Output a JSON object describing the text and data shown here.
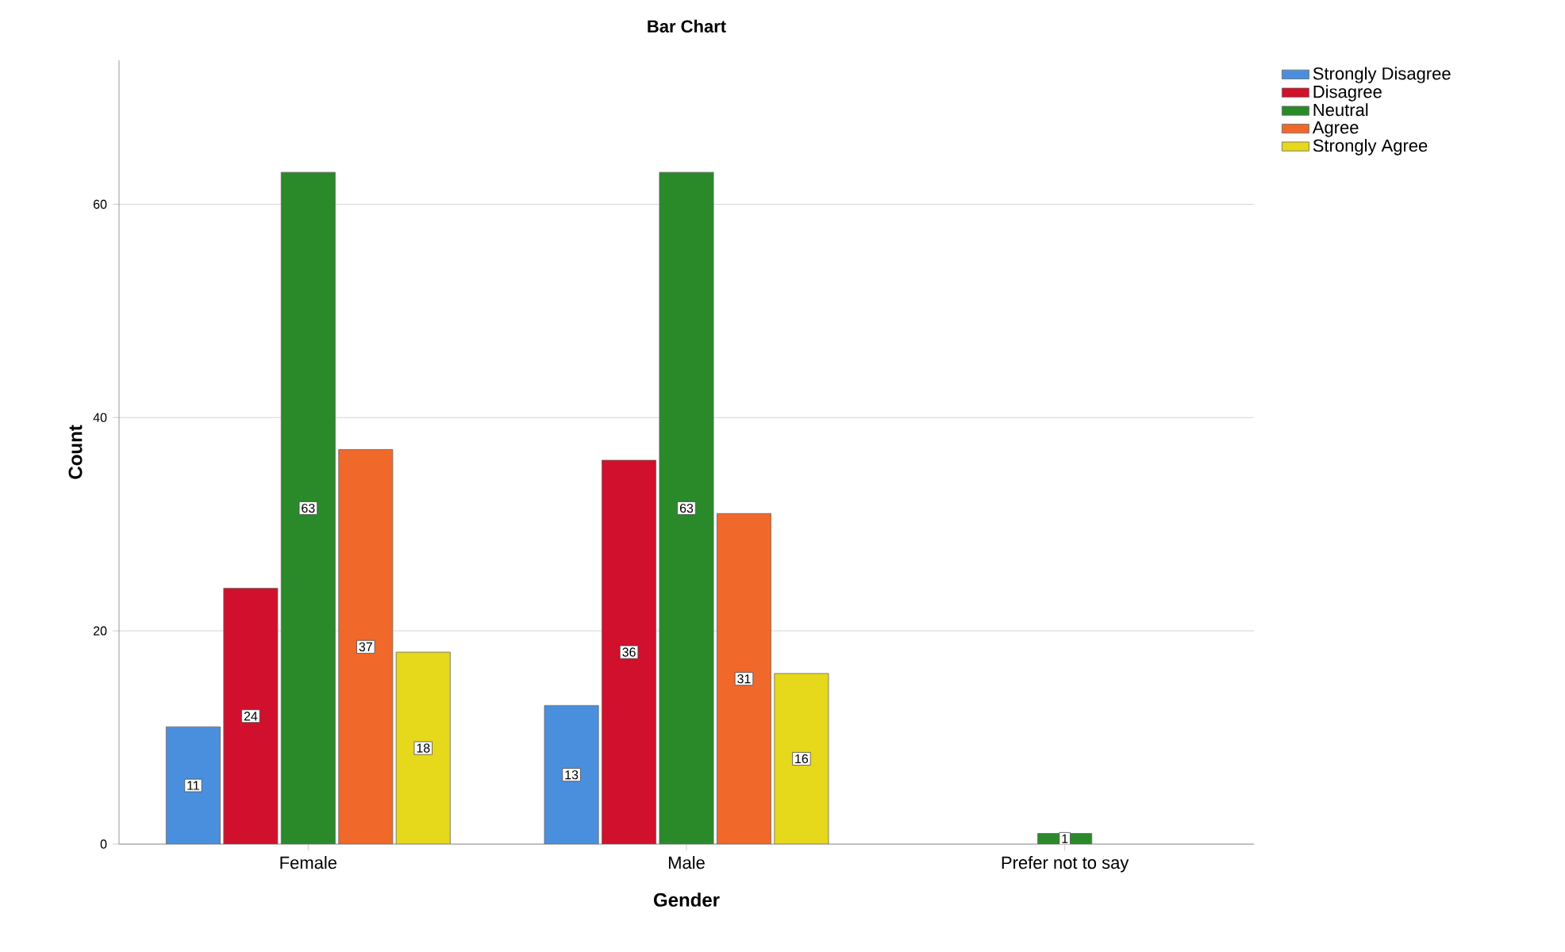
{
  "chart_data": {
    "type": "bar",
    "title": "Bar Chart",
    "xlabel": "Gender",
    "ylabel": "Count",
    "categories": [
      "Female",
      "Male",
      "Prefer not to say"
    ],
    "series": [
      {
        "name": "Strongly Disagree",
        "color": "#4a8fdd",
        "values": [
          11,
          13,
          null
        ]
      },
      {
        "name": "Disagree",
        "color": "#d0102c",
        "values": [
          24,
          36,
          null
        ]
      },
      {
        "name": "Neutral",
        "color": "#2a8a2a",
        "values": [
          63,
          63,
          1
        ]
      },
      {
        "name": "Agree",
        "color": "#f0682a",
        "values": [
          37,
          31,
          null
        ]
      },
      {
        "name": "Strongly Agree",
        "color": "#e6d81a",
        "values": [
          18,
          16,
          null
        ]
      }
    ],
    "ylim": [
      0,
      73.5
    ],
    "yticks": [
      0,
      20,
      40,
      60
    ],
    "grid": "y",
    "legend": "top right",
    "data_labels": true
  }
}
